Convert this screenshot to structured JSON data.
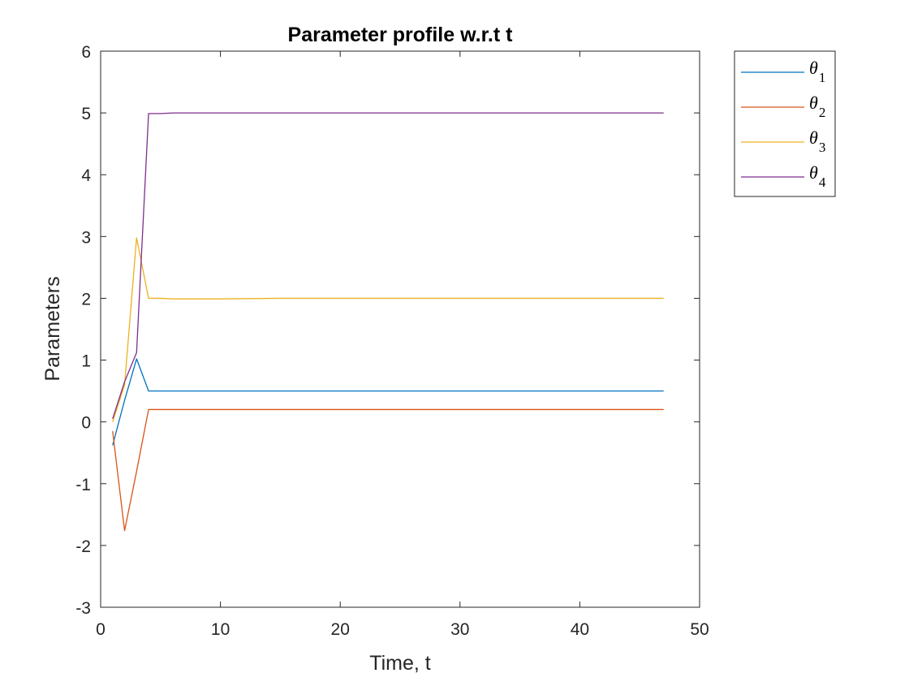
{
  "chart_data": {
    "type": "line",
    "title": "Parameter profile w.r.t t",
    "xlabel": "Time, t",
    "ylabel": "Parameters",
    "xlim": [
      0,
      50
    ],
    "ylim": [
      -3,
      6
    ],
    "xticks": [
      0,
      10,
      20,
      30,
      40,
      50
    ],
    "yticks": [
      -3,
      -2,
      -1,
      0,
      1,
      2,
      3,
      4,
      5,
      6
    ],
    "grid": false,
    "legend_position": "outside-top-right",
    "x": [
      1,
      2,
      3,
      4,
      5,
      6,
      7,
      8,
      9,
      10,
      15,
      20,
      25,
      30,
      35,
      40,
      45,
      47
    ],
    "series": [
      {
        "name": "θ1",
        "symbol": "θ",
        "subscript": "1",
        "color": "#0072BD",
        "values": [
          -0.38,
          0.35,
          1.02,
          0.5,
          0.5,
          0.5,
          0.5,
          0.5,
          0.5,
          0.5,
          0.5,
          0.5,
          0.5,
          0.5,
          0.5,
          0.5,
          0.5,
          0.5
        ]
      },
      {
        "name": "θ2",
        "symbol": "θ",
        "subscript": "2",
        "color": "#D95319",
        "values": [
          -0.15,
          -1.76,
          -0.8,
          0.2,
          0.2,
          0.2,
          0.2,
          0.2,
          0.2,
          0.2,
          0.2,
          0.2,
          0.2,
          0.2,
          0.2,
          0.2,
          0.2,
          0.2
        ]
      },
      {
        "name": "θ3",
        "symbol": "θ",
        "subscript": "3",
        "color": "#EDB120",
        "values": [
          0.0,
          0.6,
          2.98,
          2.0,
          2.0,
          1.99,
          1.99,
          1.99,
          1.99,
          1.99,
          2.0,
          2.0,
          2.0,
          2.0,
          2.0,
          2.0,
          2.0,
          2.0
        ]
      },
      {
        "name": "θ4",
        "symbol": "θ",
        "subscript": "4",
        "color": "#7E2F8E",
        "values": [
          0.05,
          0.65,
          1.12,
          4.99,
          4.99,
          5.0,
          5.0,
          5.0,
          5.0,
          5.0,
          5.0,
          5.0,
          5.0,
          5.0,
          5.0,
          5.0,
          5.0,
          5.0
        ]
      }
    ]
  }
}
